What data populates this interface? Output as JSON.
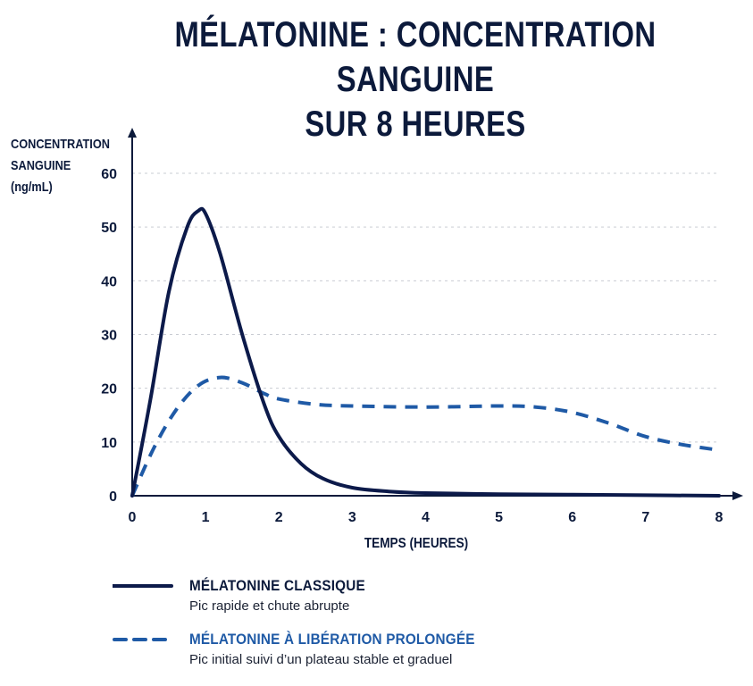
{
  "title_lines": [
    "MÉLATONINE : CONCENTRATION SANGUINE",
    "SUR 8 HEURES"
  ],
  "chart_data": {
    "type": "line",
    "title": "MÉLATONINE : CONCENTRATION SANGUINE SUR 8 HEURES",
    "ylabel_lines": [
      "CONCENTRATION",
      "SANGUINE",
      "(ng/mL)"
    ],
    "xlabel": "TEMPS (HEURES)",
    "xlim": [
      0,
      8
    ],
    "ylim": [
      0,
      60
    ],
    "xticks": [
      "0",
      "1",
      "2",
      "3",
      "4",
      "5",
      "6",
      "7",
      "8"
    ],
    "yticks": [
      "0",
      "10",
      "20",
      "30",
      "40",
      "50",
      "60"
    ],
    "grid": "horizontal-dotted",
    "series": [
      {
        "name": "MÉLATONINE CLASSIQUE",
        "description": "Pic rapide et chute abrupte",
        "color": "#0c1a4a",
        "style": "solid",
        "x": [
          0,
          0.25,
          0.5,
          0.75,
          0.9,
          1.0,
          1.2,
          1.5,
          1.8,
          2.0,
          2.3,
          2.6,
          3.0,
          3.5,
          4.0,
          5.0,
          6.0,
          7.0,
          8.0
        ],
        "y": [
          0,
          18,
          38,
          50,
          53,
          52.5,
          45,
          30,
          17,
          11,
          6,
          3.2,
          1.5,
          0.8,
          0.5,
          0.3,
          0.2,
          0.1,
          0
        ]
      },
      {
        "name": "MÉLATONINE À LIBÉRATION PROLONGÉE",
        "description": "Pic initial suivi d’un plateau stable et graduel",
        "color": "#1f5aa6",
        "style": "dashed",
        "x": [
          0,
          0.3,
          0.6,
          0.9,
          1.2,
          1.5,
          1.8,
          2.0,
          2.5,
          3.0,
          4.0,
          5.0,
          5.5,
          6.0,
          6.5,
          7.0,
          7.5,
          8.0
        ],
        "y": [
          0,
          9,
          16,
          20.5,
          22,
          21,
          19,
          18,
          17,
          16.7,
          16.5,
          16.7,
          16.5,
          15.5,
          13.5,
          11,
          9.5,
          8.5
        ]
      }
    ],
    "legend_position": "bottom"
  }
}
